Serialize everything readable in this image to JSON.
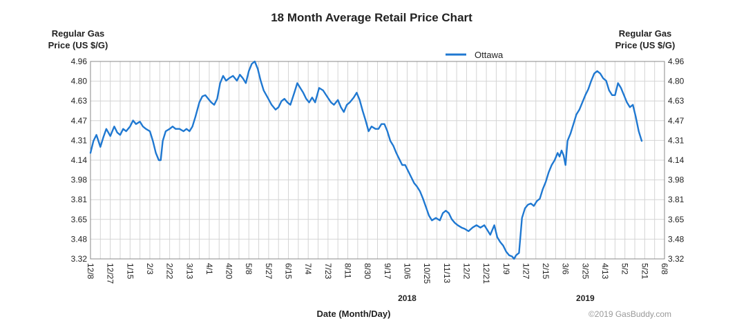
{
  "chart_data": {
    "type": "line",
    "title": "18 Month Average Retail Price Chart",
    "ylabel_left": [
      "Regular Gas",
      "Price (US $/G)"
    ],
    "ylabel_right": [
      "Regular Gas",
      "Price (US $/G)"
    ],
    "xlabel": "Date (Month/Day)",
    "y_ticks": [
      "3.32",
      "3.48",
      "3.65",
      "3.81",
      "3.98",
      "4.14",
      "4.31",
      "4.47",
      "4.63",
      "4.80",
      "4.96"
    ],
    "ylim": [
      3.32,
      4.96
    ],
    "x_ticks": [
      "12/8",
      "12/27",
      "1/15",
      "2/3",
      "2/22",
      "3/13",
      "4/1",
      "4/20",
      "5/8",
      "5/27",
      "6/15",
      "7/4",
      "7/23",
      "8/11",
      "8/30",
      "9/17",
      "10/6",
      "10/25",
      "11/13",
      "12/2",
      "12/21",
      "1/9",
      "1/27",
      "2/15",
      "3/6",
      "3/25",
      "4/13",
      "5/2",
      "5/21",
      "6/8"
    ],
    "x_years": [
      {
        "label": "2018",
        "at_tick": 16
      },
      {
        "label": "2019",
        "at_tick": 25
      }
    ],
    "legend": {
      "entries": [
        "Ottawa"
      ],
      "position": "top-center"
    },
    "grid": true,
    "credit": "©2019 GasBuddy.com",
    "series": [
      {
        "name": "Ottawa",
        "color": "#1f78d1",
        "points": [
          [
            0,
            4.2
          ],
          [
            0.3,
            4.3
          ],
          [
            0.6,
            4.35
          ],
          [
            1,
            4.25
          ],
          [
            1.3,
            4.33
          ],
          [
            1.6,
            4.4
          ],
          [
            2,
            4.34
          ],
          [
            2.4,
            4.42
          ],
          [
            2.7,
            4.37
          ],
          [
            3,
            4.35
          ],
          [
            3.3,
            4.4
          ],
          [
            3.6,
            4.38
          ],
          [
            4,
            4.42
          ],
          [
            4.3,
            4.47
          ],
          [
            4.6,
            4.44
          ],
          [
            5,
            4.46
          ],
          [
            5.3,
            4.42
          ],
          [
            5.6,
            4.4
          ],
          [
            6,
            4.38
          ],
          [
            6.3,
            4.3
          ],
          [
            6.6,
            4.2
          ],
          [
            6.9,
            4.14
          ],
          [
            7.1,
            4.14
          ],
          [
            7.3,
            4.3
          ],
          [
            7.6,
            4.38
          ],
          [
            8,
            4.4
          ],
          [
            8.3,
            4.42
          ],
          [
            8.6,
            4.4
          ],
          [
            9,
            4.4
          ],
          [
            9.4,
            4.38
          ],
          [
            9.7,
            4.4
          ],
          [
            10,
            4.38
          ],
          [
            10.3,
            4.42
          ],
          [
            10.6,
            4.5
          ],
          [
            11,
            4.62
          ],
          [
            11.3,
            4.67
          ],
          [
            11.6,
            4.68
          ],
          [
            11.9,
            4.65
          ],
          [
            12.2,
            4.62
          ],
          [
            12.5,
            4.6
          ],
          [
            12.8,
            4.65
          ],
          [
            13.1,
            4.78
          ],
          [
            13.4,
            4.84
          ],
          [
            13.7,
            4.8
          ],
          [
            14,
            4.82
          ],
          [
            14.4,
            4.84
          ],
          [
            14.8,
            4.8
          ],
          [
            15.1,
            4.85
          ],
          [
            15.4,
            4.82
          ],
          [
            15.7,
            4.78
          ],
          [
            16,
            4.88
          ],
          [
            16.3,
            4.94
          ],
          [
            16.6,
            4.96
          ],
          [
            16.9,
            4.9
          ],
          [
            17.2,
            4.8
          ],
          [
            17.5,
            4.72
          ],
          [
            17.9,
            4.66
          ],
          [
            18.3,
            4.6
          ],
          [
            18.7,
            4.56
          ],
          [
            19,
            4.58
          ],
          [
            19.3,
            4.63
          ],
          [
            19.6,
            4.65
          ],
          [
            19.9,
            4.62
          ],
          [
            20.2,
            4.6
          ],
          [
            20.6,
            4.7
          ],
          [
            20.9,
            4.78
          ],
          [
            21.2,
            4.74
          ],
          [
            21.5,
            4.7
          ],
          [
            21.8,
            4.65
          ],
          [
            22.1,
            4.62
          ],
          [
            22.4,
            4.66
          ],
          [
            22.7,
            4.62
          ],
          [
            23.1,
            4.74
          ],
          [
            23.5,
            4.72
          ],
          [
            23.9,
            4.67
          ],
          [
            24.3,
            4.62
          ],
          [
            24.6,
            4.6
          ],
          [
            25,
            4.64
          ],
          [
            25.3,
            4.58
          ],
          [
            25.6,
            4.54
          ],
          [
            25.9,
            4.6
          ],
          [
            26.2,
            4.62
          ],
          [
            26.6,
            4.66
          ],
          [
            26.9,
            4.7
          ],
          [
            27.2,
            4.64
          ],
          [
            27.5,
            4.55
          ],
          [
            27.8,
            4.47
          ],
          [
            28.1,
            4.38
          ],
          [
            28.4,
            4.42
          ],
          [
            28.8,
            4.4
          ],
          [
            29.1,
            4.4
          ],
          [
            29.4,
            4.44
          ],
          [
            29.7,
            4.44
          ],
          [
            30,
            4.38
          ],
          [
            30.3,
            4.3
          ],
          [
            30.6,
            4.26
          ],
          [
            30.9,
            4.2
          ],
          [
            31.2,
            4.15
          ],
          [
            31.5,
            4.1
          ],
          [
            31.8,
            4.1
          ],
          [
            32.1,
            4.05
          ],
          [
            32.4,
            4.0
          ],
          [
            32.7,
            3.95
          ],
          [
            33,
            3.92
          ],
          [
            33.3,
            3.88
          ],
          [
            33.6,
            3.82
          ],
          [
            33.9,
            3.75
          ],
          [
            34.2,
            3.68
          ],
          [
            34.5,
            3.64
          ],
          [
            34.9,
            3.66
          ],
          [
            35.3,
            3.64
          ],
          [
            35.6,
            3.7
          ],
          [
            35.9,
            3.72
          ],
          [
            36.2,
            3.7
          ],
          [
            36.5,
            3.65
          ],
          [
            36.8,
            3.62
          ],
          [
            37.1,
            3.6
          ],
          [
            37.5,
            3.58
          ],
          [
            37.8,
            3.57
          ],
          [
            38.2,
            3.55
          ],
          [
            38.6,
            3.58
          ],
          [
            39,
            3.6
          ],
          [
            39.4,
            3.58
          ],
          [
            39.8,
            3.6
          ],
          [
            40.1,
            3.56
          ],
          [
            40.4,
            3.52
          ],
          [
            40.8,
            3.6
          ],
          [
            41.1,
            3.5
          ],
          [
            41.4,
            3.46
          ],
          [
            41.7,
            3.43
          ],
          [
            42,
            3.38
          ],
          [
            42.3,
            3.35
          ],
          [
            42.6,
            3.34
          ],
          [
            42.8,
            3.32
          ],
          [
            43,
            3.35
          ],
          [
            43.3,
            3.37
          ],
          [
            43.6,
            3.66
          ],
          [
            43.9,
            3.74
          ],
          [
            44.2,
            3.77
          ],
          [
            44.5,
            3.78
          ],
          [
            44.8,
            3.76
          ],
          [
            45.1,
            3.8
          ],
          [
            45.4,
            3.82
          ],
          [
            45.7,
            3.9
          ],
          [
            46,
            3.96
          ],
          [
            46.3,
            4.04
          ],
          [
            46.6,
            4.1
          ],
          [
            46.9,
            4.14
          ],
          [
            47.2,
            4.2
          ],
          [
            47.4,
            4.17
          ],
          [
            47.6,
            4.22
          ],
          [
            47.8,
            4.18
          ],
          [
            48,
            4.1
          ],
          [
            48.2,
            4.3
          ],
          [
            48.5,
            4.36
          ],
          [
            48.8,
            4.44
          ],
          [
            49.1,
            4.52
          ],
          [
            49.4,
            4.56
          ],
          [
            49.7,
            4.62
          ],
          [
            50,
            4.68
          ],
          [
            50.3,
            4.73
          ],
          [
            50.6,
            4.8
          ],
          [
            50.9,
            4.86
          ],
          [
            51.2,
            4.88
          ],
          [
            51.5,
            4.86
          ],
          [
            51.8,
            4.82
          ],
          [
            52.1,
            4.8
          ],
          [
            52.4,
            4.72
          ],
          [
            52.7,
            4.68
          ],
          [
            53,
            4.68
          ],
          [
            53.3,
            4.78
          ],
          [
            53.6,
            4.74
          ],
          [
            53.9,
            4.68
          ],
          [
            54.2,
            4.62
          ],
          [
            54.5,
            4.58
          ],
          [
            54.8,
            4.6
          ],
          [
            55.1,
            4.5
          ],
          [
            55.4,
            4.38
          ],
          [
            55.7,
            4.3
          ]
        ],
        "x_units": "x-tick index / 2 (each point half a tick-interval)"
      }
    ]
  }
}
